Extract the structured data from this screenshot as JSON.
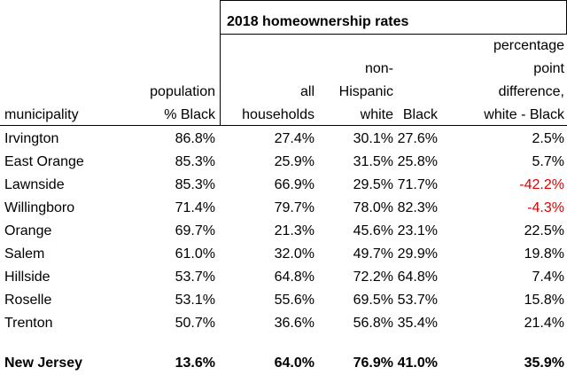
{
  "table": {
    "header_group": "2018 homeownership rates",
    "columns": [
      [
        "municipality"
      ],
      [
        "population",
        "% Black"
      ],
      [
        "all",
        "households"
      ],
      [
        "non-",
        "Hispanic",
        "white"
      ],
      [
        "Black"
      ],
      [
        "percentage",
        "point",
        "difference,",
        "white - Black"
      ]
    ],
    "rows": [
      [
        "Irvington",
        "86.8%",
        "27.4%",
        "30.1%",
        "27.6%",
        "2.5%"
      ],
      [
        "East Orange",
        "85.3%",
        "25.9%",
        "31.5%",
        "25.8%",
        "5.7%"
      ],
      [
        "Lawnside",
        "85.3%",
        "66.9%",
        "29.5%",
        "71.7%",
        "-42.2%"
      ],
      [
        "Willingboro",
        "71.4%",
        "79.7%",
        "78.0%",
        "82.3%",
        "-4.3%"
      ],
      [
        "Orange",
        "69.7%",
        "21.3%",
        "45.6%",
        "23.1%",
        "22.5%"
      ],
      [
        "Salem",
        "61.0%",
        "32.0%",
        "49.7%",
        "29.9%",
        "19.8%"
      ],
      [
        "Hillside",
        "53.7%",
        "64.8%",
        "72.2%",
        "64.8%",
        "7.4%"
      ],
      [
        "Roselle",
        "53.1%",
        "55.6%",
        "69.5%",
        "53.7%",
        "15.8%"
      ],
      [
        "Trenton",
        "50.7%",
        "36.6%",
        "56.8%",
        "35.4%",
        "21.4%"
      ]
    ],
    "total": [
      "New Jersey",
      "13.6%",
      "64.0%",
      "76.9%",
      "41.0%",
      "35.9%"
    ],
    "negative_color": "#e00000"
  }
}
